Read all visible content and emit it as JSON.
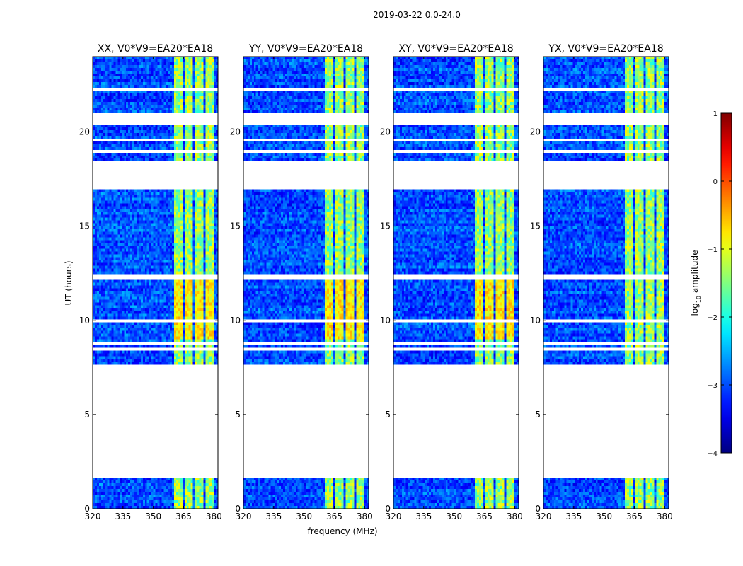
{
  "figure": {
    "suptitle": "2019-03-22 0.0-24.0"
  },
  "chart_data": {
    "type": "heatmap",
    "panels": [
      {
        "title": "XX, V0*V9=EA20*EA18"
      },
      {
        "title": "YY, V0*V9=EA20*EA18"
      },
      {
        "title": "XY, V0*V9=EA20*EA18"
      },
      {
        "title": "YX, V0*V9=EA20*EA18"
      }
    ],
    "xlabel": "frequency (MHz)",
    "ylabel": "UT (hours)",
    "xlim": [
      320,
      382
    ],
    "ylim": [
      0,
      24
    ],
    "xticks": [
      320,
      335,
      350,
      365,
      380
    ],
    "yticks": [
      0,
      5,
      10,
      15,
      20
    ],
    "colorbar": {
      "label": "log10 amplitude",
      "label_main": "log",
      "label_sub": "10",
      "label_rest": " amplitude",
      "range": [
        -4,
        1
      ],
      "ticks": [
        1,
        0,
        -1,
        -2,
        -3,
        -4
      ],
      "tick_labels": [
        "1",
        "0",
        "−1",
        "−2",
        "−3",
        "−4"
      ],
      "colormap": "jet"
    },
    "flagged_time_ranges_hours": [
      [
        1.6,
        7.7
      ],
      [
        17.0,
        18.4
      ],
      [
        20.35,
        21.0
      ],
      [
        12.2,
        12.4
      ],
      [
        9.95,
        10.05
      ],
      [
        8.75,
        8.85
      ],
      [
        8.45,
        8.55
      ],
      [
        1.05,
        1.12
      ],
      [
        0.55,
        0.62
      ],
      [
        18.95,
        19.05
      ],
      [
        19.55,
        19.65
      ],
      [
        22.2,
        22.3
      ],
      [
        23.2,
        23.3
      ]
    ],
    "rfi_band_mhz": [
      360,
      380
    ],
    "rfi_channel_gaps_mhz": [
      [
        364.5,
        365.5
      ],
      [
        369.5,
        370.5
      ],
      [
        374.5,
        375.5
      ]
    ],
    "bright_rfi_hours": [
      [
        9.0,
        12.1
      ]
    ],
    "background_log10_amplitude": [
      -3.4,
      -2.6
    ],
    "rfi_log10_amplitude": [
      -2.0,
      -0.8
    ],
    "bright_rfi_log10_amplitude": [
      -1.2,
      -0.4
    ]
  }
}
